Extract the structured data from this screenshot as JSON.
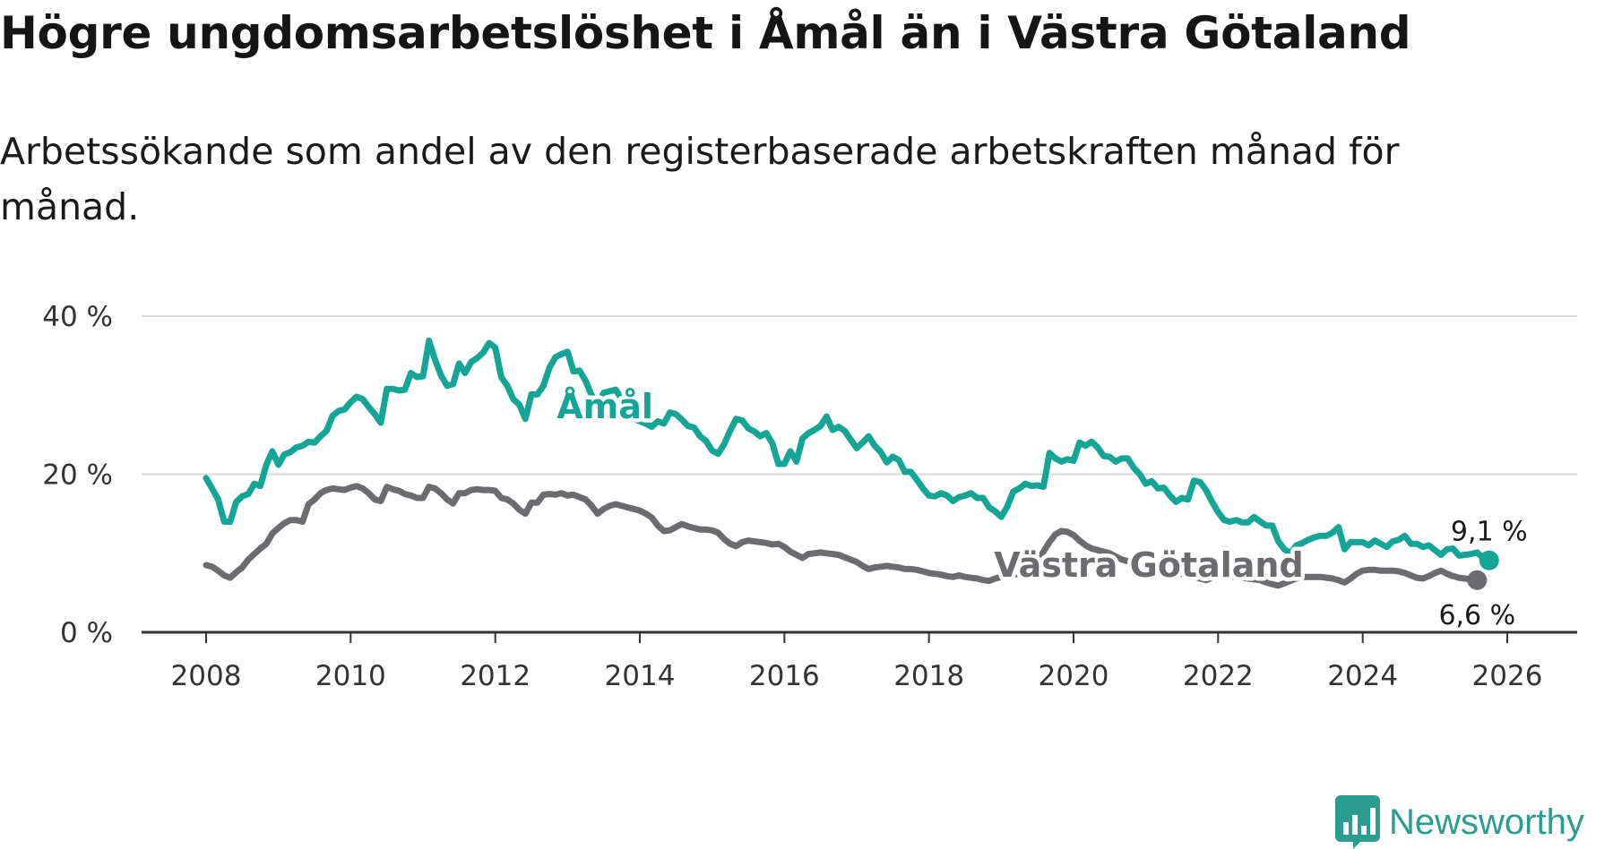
{
  "title": "Högre ungdomsarbetslöshet i Åmål än i Västra Götaland",
  "subtitle": "Arbetssökande som andel av den registerbaserade arbetskraften månad för månad.",
  "brand": "Newsworthy",
  "colors": {
    "amal": "#14a596",
    "vg": "#6d6b70",
    "grid": "#d8d8d8",
    "axis": "#333333"
  },
  "chart_data": {
    "type": "line",
    "xlabel": "",
    "ylabel": "",
    "xlim": [
      2007.5,
      2027.0
    ],
    "ylim": [
      0,
      40
    ],
    "x_ticks": [
      {
        "value": 2008,
        "label": "2008"
      },
      {
        "value": 2010,
        "label": "2010"
      },
      {
        "value": 2012,
        "label": "2012"
      },
      {
        "value": 2014,
        "label": "2014"
      },
      {
        "value": 2016,
        "label": "2016"
      },
      {
        "value": 2018,
        "label": "2018"
      },
      {
        "value": 2020,
        "label": "2020"
      },
      {
        "value": 2022,
        "label": "2022"
      },
      {
        "value": 2024,
        "label": "2024"
      },
      {
        "value": 2026,
        "label": "2026"
      }
    ],
    "y_ticks": [
      {
        "value": 0,
        "label": "0 %"
      },
      {
        "value": 20,
        "label": "20 %"
      },
      {
        "value": 40,
        "label": "40 %"
      }
    ],
    "start_year": 2008.0,
    "step_years": 0.08333,
    "series": [
      {
        "name": "Åmål",
        "label": "Åmål",
        "color": "#14a596",
        "end_label": "9,1 %",
        "values": [
          19.5,
          18.2,
          16.8,
          14.0,
          14.0,
          16.5,
          17.2,
          17.5,
          18.8,
          18.5,
          21.2,
          22.9,
          21.2,
          22.5,
          22.8,
          23.4,
          23.6,
          24.1,
          24.0,
          24.8,
          25.5,
          27.4,
          28.0,
          28.2,
          29.1,
          29.8,
          29.5,
          28.5,
          27.6,
          26.5,
          30.8,
          30.8,
          30.6,
          30.7,
          32.8,
          32.3,
          32.4,
          36.9,
          34.5,
          32.5,
          31.2,
          31.4,
          34.0,
          32.8,
          34.2,
          34.7,
          35.4,
          36.6,
          36.0,
          32.3,
          31.2,
          29.5,
          28.8,
          27.0,
          30.1,
          30.1,
          31.2,
          33.5,
          34.8,
          35.2,
          35.5,
          33.0,
          33.1,
          31.8,
          30.0,
          28.7,
          30.3,
          30.5,
          30.7,
          29.5,
          28.0,
          27.0,
          26.7,
          26.4,
          26.0,
          26.7,
          26.4,
          27.8,
          27.6,
          26.9,
          26.1,
          25.9,
          24.8,
          24.2,
          23.0,
          22.6,
          23.8,
          25.5,
          27.0,
          26.8,
          25.8,
          25.4,
          24.8,
          25.2,
          23.9,
          21.3,
          21.3,
          22.9,
          21.6,
          24.5,
          25.2,
          25.6,
          26.1,
          27.3,
          25.6,
          26.0,
          25.5,
          24.4,
          23.3,
          24.0,
          24.8,
          23.6,
          22.8,
          21.5,
          22.2,
          21.8,
          20.3,
          20.3,
          19.3,
          18.2,
          17.3,
          17.2,
          17.6,
          17.3,
          16.6,
          17.1,
          17.3,
          17.6,
          17.0,
          17.0,
          15.8,
          15.3,
          14.6,
          15.9,
          17.8,
          18.2,
          18.8,
          18.5,
          18.6,
          18.4,
          22.7,
          22.0,
          21.6,
          21.9,
          21.7,
          24.0,
          23.6,
          24.1,
          23.4,
          22.3,
          22.2,
          21.6,
          22.0,
          22.0,
          20.8,
          20.0,
          18.8,
          19.1,
          18.2,
          18.3,
          17.3,
          16.5,
          17.0,
          16.8,
          19.2,
          19.0,
          18.0,
          16.5,
          15.2,
          14.2,
          14.0,
          14.2,
          13.9,
          13.9,
          14.6,
          14.0,
          13.5,
          13.5,
          11.5,
          10.5,
          10.0,
          11.0,
          11.3,
          11.7,
          12.0,
          12.2,
          12.2,
          12.6,
          13.3,
          10.5,
          11.4,
          11.4,
          11.4,
          11.0,
          11.6,
          11.2,
          10.8,
          11.5,
          11.7,
          12.2,
          11.2,
          11.2,
          10.8,
          11.0,
          10.4,
          9.8,
          10.5,
          10.6,
          9.7,
          9.8,
          9.9,
          10.1,
          9.4,
          9.1
        ]
      },
      {
        "name": "Västra Götaland",
        "label": "Västra Götaland",
        "color": "#6d6b70",
        "end_label": "6,6 %",
        "values": [
          8.5,
          8.3,
          7.8,
          7.2,
          6.9,
          7.6,
          8.2,
          9.2,
          9.9,
          10.6,
          11.2,
          12.5,
          13.2,
          13.8,
          14.2,
          14.2,
          14.0,
          16.2,
          16.8,
          17.6,
          18.0,
          18.2,
          18.1,
          18.0,
          18.3,
          18.5,
          18.2,
          17.6,
          16.8,
          16.6,
          18.4,
          18.1,
          17.9,
          17.5,
          17.3,
          17.0,
          17.0,
          18.4,
          18.2,
          17.6,
          16.8,
          16.3,
          17.6,
          17.6,
          18.0,
          18.1,
          18.0,
          18.0,
          17.9,
          17.0,
          16.8,
          16.3,
          15.5,
          15.0,
          16.4,
          16.4,
          17.4,
          17.5,
          17.4,
          17.6,
          17.3,
          17.4,
          17.1,
          16.8,
          16.0,
          15.0,
          15.6,
          16.0,
          16.2,
          16.0,
          15.8,
          15.6,
          15.4,
          15.0,
          14.5,
          13.5,
          12.8,
          12.9,
          13.3,
          13.7,
          13.4,
          13.2,
          13.0,
          13.0,
          12.9,
          12.6,
          11.8,
          11.2,
          10.9,
          11.4,
          11.6,
          11.5,
          11.4,
          11.3,
          11.1,
          11.2,
          10.8,
          10.2,
          9.8,
          9.4,
          9.9,
          10.0,
          10.1,
          10.0,
          9.9,
          9.8,
          9.5,
          9.2,
          8.9,
          8.4,
          8.0,
          8.2,
          8.3,
          8.4,
          8.3,
          8.2,
          8.0,
          8.0,
          7.9,
          7.7,
          7.5,
          7.4,
          7.3,
          7.1,
          7.0,
          7.2,
          7.0,
          6.9,
          6.8,
          6.6,
          6.5,
          6.8,
          7.0,
          7.2,
          7.3,
          7.4,
          7.3,
          7.0,
          9.0,
          10.2,
          11.4,
          12.4,
          12.8,
          12.7,
          12.3,
          11.6,
          11.0,
          10.6,
          10.4,
          10.2,
          10.0,
          9.6,
          9.2,
          9.0,
          8.8,
          8.7,
          8.5,
          8.3,
          8.2,
          8.0,
          7.8,
          7.6,
          7.4,
          7.2,
          7.0,
          6.8,
          6.6,
          6.9,
          7.1,
          7.2,
          7.1,
          7.0,
          6.9,
          6.8,
          6.7,
          6.6,
          6.3,
          6.1,
          5.9,
          6.2,
          6.5,
          6.8,
          7.0,
          7.0,
          7.0,
          7.0,
          6.9,
          6.8,
          6.6,
          6.3,
          6.8,
          7.4,
          7.8,
          7.9,
          7.9,
          7.8,
          7.8,
          7.8,
          7.7,
          7.5,
          7.2,
          6.9,
          6.8,
          7.1,
          7.5,
          7.8,
          7.4,
          7.1,
          6.9,
          6.8,
          6.7,
          6.6
        ]
      }
    ]
  }
}
